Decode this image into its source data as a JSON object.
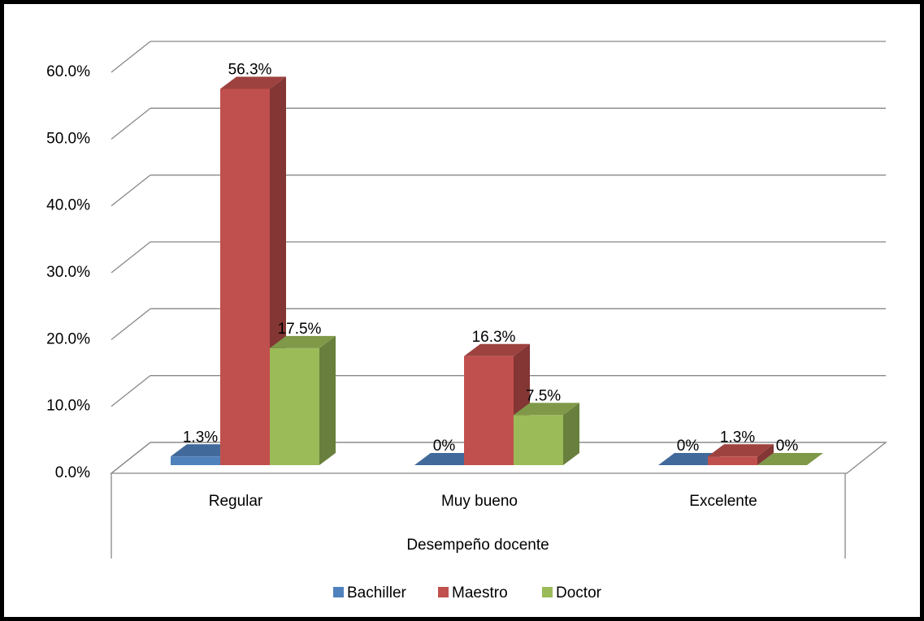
{
  "chart_data": {
    "type": "bar3d",
    "categories": [
      "Regular",
      "Muy bueno",
      "Excelente"
    ],
    "x_label": "Desempeño docente",
    "series": [
      {
        "name": "Bachiller",
        "color": "#4f81bd",
        "values": [
          1.3,
          0,
          0
        ],
        "value_labels": [
          "1.3%",
          "0%",
          "0%"
        ]
      },
      {
        "name": "Maestro",
        "color": "#c0504d",
        "values": [
          56.3,
          16.3,
          1.3
        ],
        "value_labels": [
          "56.3%",
          "16.3%",
          "1.3%"
        ]
      },
      {
        "name": "Doctor",
        "color": "#9bbb59",
        "values": [
          17.5,
          7.5,
          0
        ],
        "value_labels": [
          "17.5%",
          "7.5%",
          "0%"
        ]
      }
    ],
    "ylim": [
      0,
      60
    ],
    "yticks": [
      {
        "value": 0,
        "label": "0.0%"
      },
      {
        "value": 10,
        "label": "10.0%"
      },
      {
        "value": 20,
        "label": "20.0%"
      },
      {
        "value": 30,
        "label": "30.0%"
      },
      {
        "value": 40,
        "label": "40.0%"
      },
      {
        "value": 50,
        "label": "50.0%"
      },
      {
        "value": 60,
        "label": "60.0%"
      }
    ],
    "grid": true,
    "legend": "bottom"
  }
}
